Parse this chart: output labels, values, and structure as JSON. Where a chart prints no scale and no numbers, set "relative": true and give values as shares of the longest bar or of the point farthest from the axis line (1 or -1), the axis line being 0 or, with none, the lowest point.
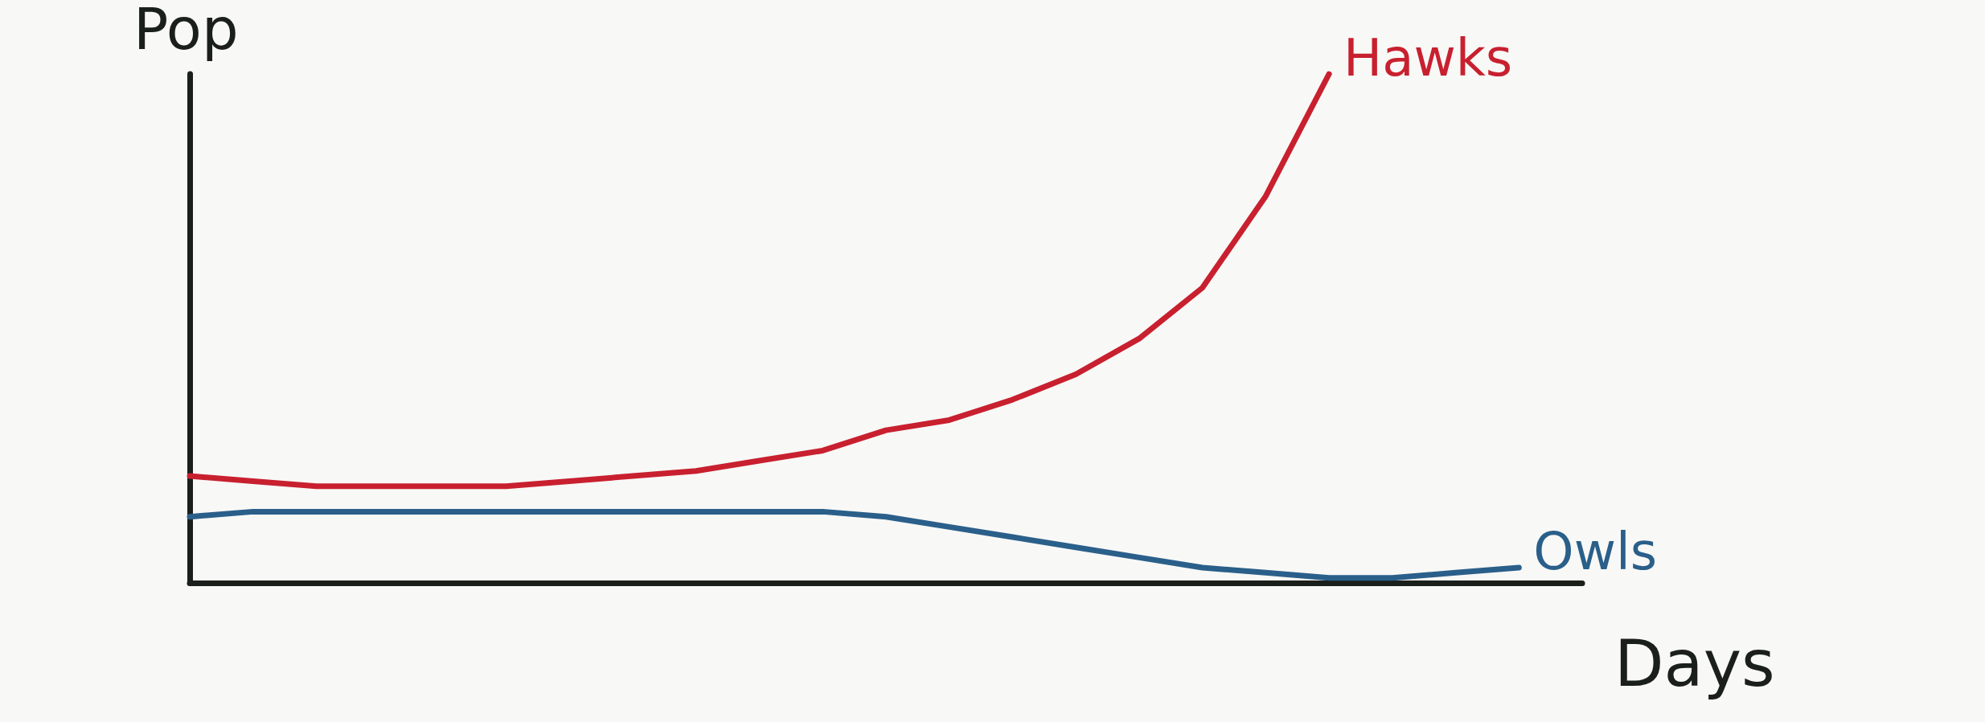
{
  "chart_data": {
    "type": "line",
    "relative": true,
    "xlabel": "Days",
    "ylabel": "Pop",
    "grid": false,
    "legend": false,
    "marker": "none",
    "line_style": "solid",
    "categories": [
      null,
      null,
      null,
      null,
      null,
      null,
      null,
      null,
      null,
      null,
      null,
      null,
      null,
      null,
      null,
      null,
      null,
      null,
      null,
      null,
      null,
      null,
      null
    ],
    "series": [
      {
        "name": "Hawks",
        "color": "#c8202f",
        "values": [
          0.21,
          0.2,
          0.19,
          0.19,
          0.19,
          0.19,
          0.2,
          0.21,
          0.22,
          0.24,
          0.26,
          0.3,
          0.32,
          0.36,
          0.41,
          0.48,
          0.58,
          0.76,
          1,
          null,
          null,
          null,
          null
        ]
      },
      {
        "name": "Owls",
        "color": "#2a5f8a",
        "values": [
          0.13,
          0.14,
          0.14,
          0.14,
          0.14,
          0.14,
          0.14,
          0.14,
          0.14,
          0.14,
          0.14,
          0.13,
          0.11,
          0.09,
          0.07,
          0.05,
          0.03,
          0.02,
          0.01,
          0.01,
          0.02,
          0.03,
          null
        ]
      }
    ]
  }
}
